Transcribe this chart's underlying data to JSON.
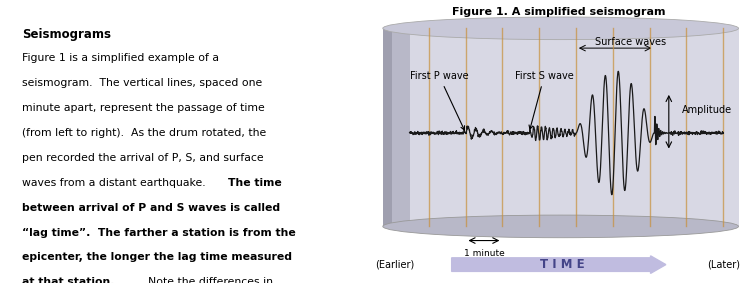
{
  "title": "Figure 1. A simplified seismogram",
  "bg_color": "#ffffff",
  "text_left_title": "Seismograms",
  "label_P": "First P wave",
  "label_S": "First S wave",
  "label_surface": "Surface waves",
  "label_amplitude": "Amplitude",
  "label_1min": "1 minute",
  "label_earlier": "(Earlier)",
  "label_later": "(Later)",
  "label_time": "T I M E",
  "wave_color": "#1a1a1a",
  "vline_color": "#c8903a",
  "vline_alpha": 0.7,
  "drum_body_color": "#d8d8e4",
  "drum_left_color": "#b8b8c8",
  "drum_top_color": "#c8c8d8",
  "drum_bot_color": "#b8b8c8",
  "arrow_fill": "#c0bce0",
  "arrow_text_color": "#444488"
}
